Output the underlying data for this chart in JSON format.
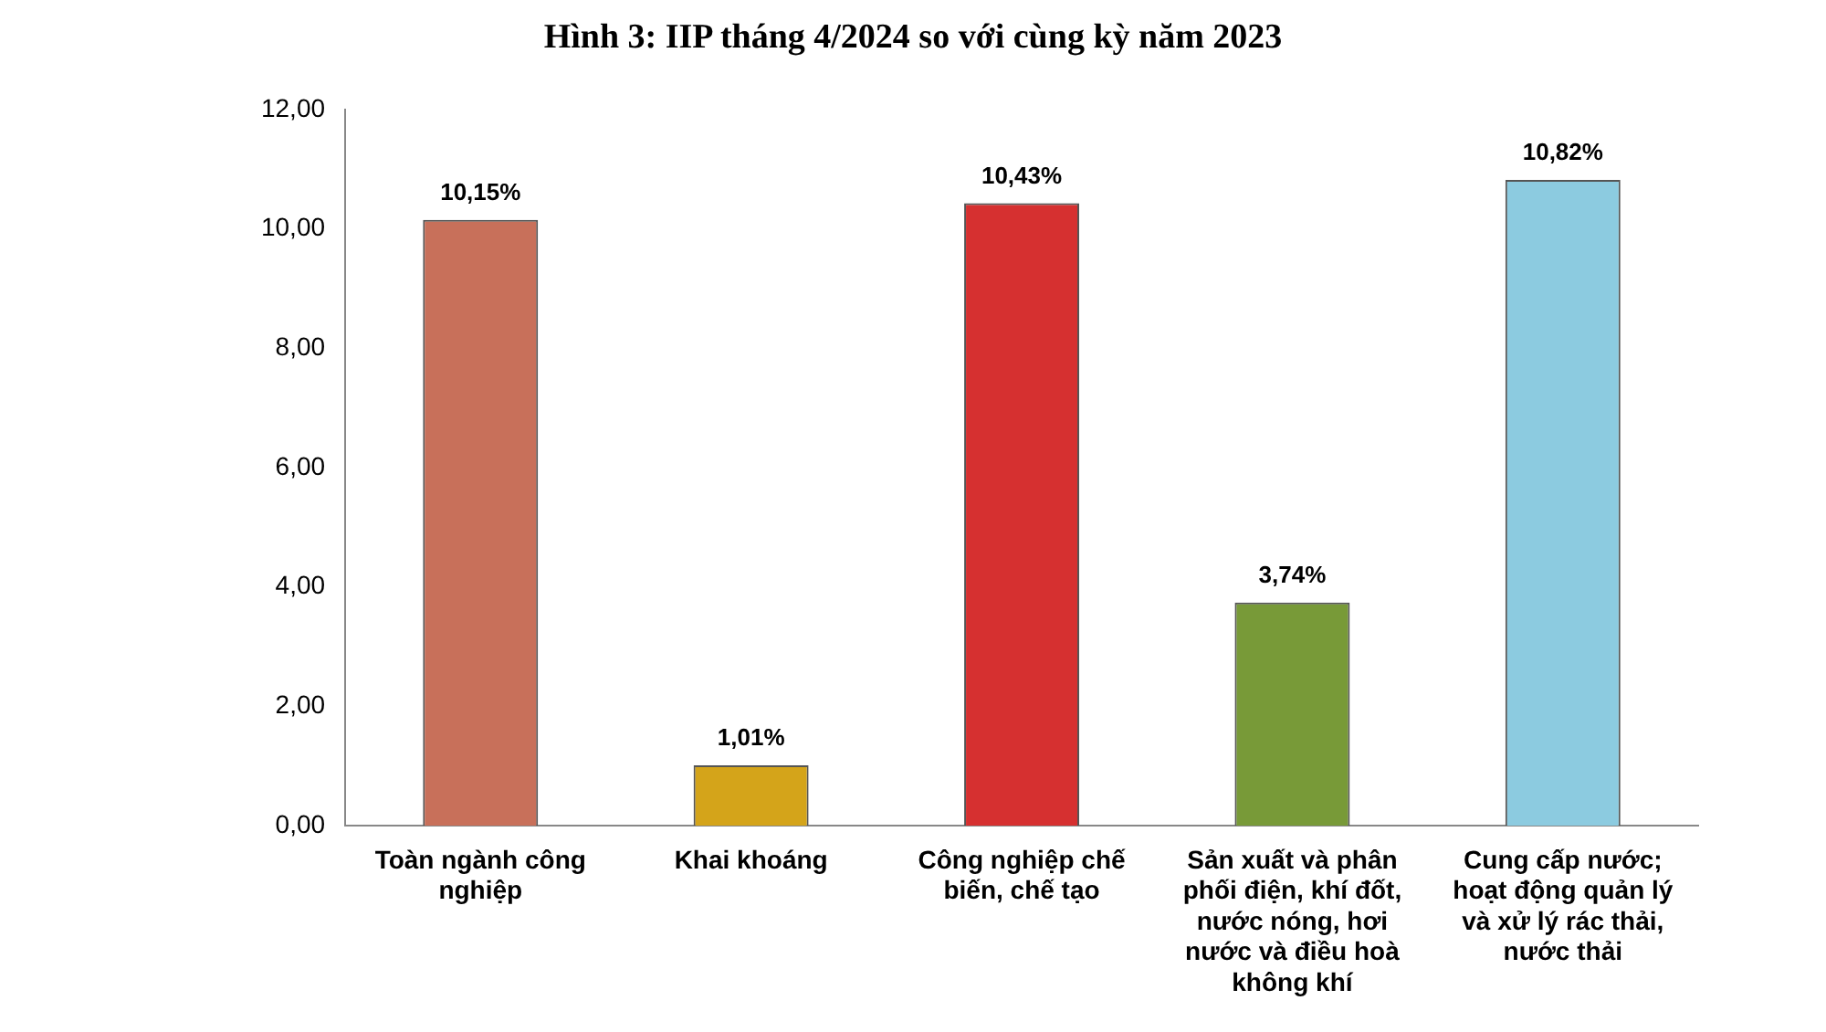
{
  "chart_data": {
    "type": "bar",
    "title": "Hình 3: IIP tháng 4/2024 so với cùng kỳ năm 2023",
    "categories": [
      "Toàn ngành công nghiệp",
      "Khai khoáng",
      "Công nghiệp chế biến, chế tạo",
      "Sản xuất và phân phối điện, khí đốt, nước nóng, hơi nước và điều hoà không khí",
      "Cung cấp nước; hoạt động quản lý và xử lý rác thải, nước thải"
    ],
    "values": [
      10.15,
      1.01,
      10.43,
      3.74,
      10.82
    ],
    "colors": [
      "#c8705a",
      "#d4a41a",
      "#d63030",
      "#789a38",
      "#8ccbe0"
    ],
    "value_labels": [
      "10,15%",
      "1,01%",
      "10,43%",
      "3,74%",
      "10,82%"
    ],
    "ylim": [
      0,
      12
    ],
    "yticks": [
      {
        "value": 0,
        "label": "0,00"
      },
      {
        "value": 2,
        "label": "2,00"
      },
      {
        "value": 4,
        "label": "4,00"
      },
      {
        "value": 6,
        "label": "6,00"
      },
      {
        "value": 8,
        "label": "8,00"
      },
      {
        "value": 10,
        "label": "10,00"
      },
      {
        "value": 12,
        "label": "12,00"
      }
    ],
    "grid": false
  }
}
